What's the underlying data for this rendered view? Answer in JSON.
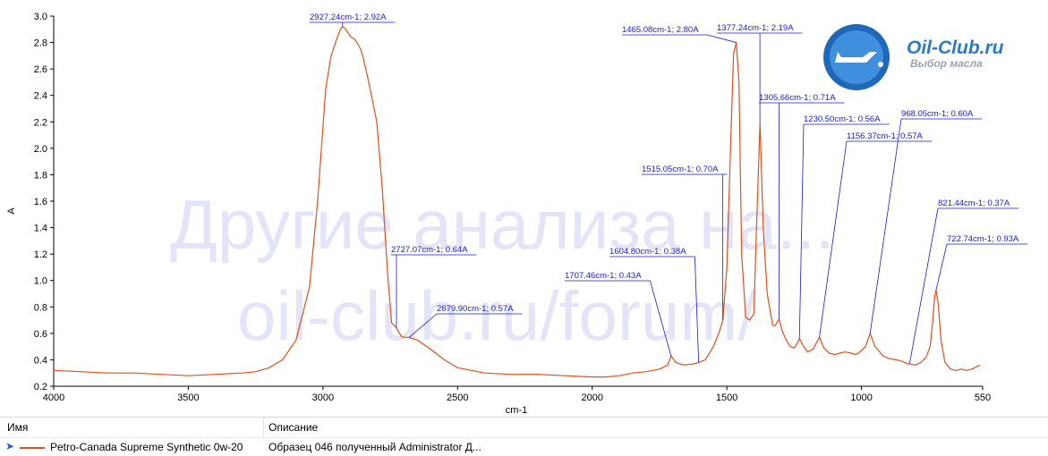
{
  "chart_data": {
    "type": "line",
    "xlabel": "cm-1",
    "ylabel": "A",
    "xlim": [
      4000,
      550
    ],
    "ylim": [
      0.2,
      3.0
    ],
    "x_reversed": true,
    "x_ticks": [
      4000,
      3500,
      3000,
      2500,
      2000,
      1500,
      1000,
      550
    ],
    "y_ticks": [
      0.2,
      0.4,
      0.6,
      0.8,
      1.0,
      1.2,
      1.4,
      1.6,
      1.8,
      2.0,
      2.2,
      2.4,
      2.6,
      2.8,
      3.0
    ],
    "y_tick_labels": [
      "0.2",
      "0.4",
      "0.6",
      "0.8",
      "1.0",
      "1.2",
      "1.4",
      "1.6",
      "1.8",
      "2.0",
      "2.2",
      "2.4",
      "2.6",
      "2.8",
      "3.0"
    ],
    "grid": false,
    "series": [
      {
        "name": "Petro-Canada Supreme Synthetic 0w-20",
        "color": "#e0501a",
        "x": [
          4000,
          3900,
          3800,
          3700,
          3600,
          3500,
          3400,
          3300,
          3250,
          3200,
          3150,
          3100,
          3050,
          3020,
          2990,
          2970,
          2950,
          2935,
          2927,
          2915,
          2900,
          2880,
          2860,
          2850,
          2830,
          2800,
          2780,
          2760,
          2745,
          2727,
          2710,
          2700,
          2680,
          2650,
          2600,
          2550,
          2500,
          2400,
          2300,
          2200,
          2100,
          2000,
          1950,
          1900,
          1850,
          1800,
          1750,
          1720,
          1707,
          1690,
          1660,
          1620,
          1605,
          1580,
          1550,
          1530,
          1515,
          1500,
          1485,
          1475,
          1465,
          1455,
          1445,
          1430,
          1415,
          1400,
          1390,
          1377,
          1365,
          1350,
          1330,
          1320,
          1306,
          1295,
          1280,
          1265,
          1250,
          1240,
          1230,
          1215,
          1200,
          1180,
          1170,
          1156,
          1140,
          1120,
          1100,
          1080,
          1060,
          1040,
          1020,
          1000,
          985,
          968,
          950,
          920,
          900,
          870,
          850,
          830,
          821,
          800,
          780,
          760,
          745,
          735,
          728,
          723,
          715,
          705,
          690,
          670,
          650,
          630,
          610,
          590,
          570,
          560
        ],
        "y": [
          0.32,
          0.31,
          0.3,
          0.3,
          0.29,
          0.28,
          0.29,
          0.3,
          0.31,
          0.34,
          0.4,
          0.55,
          0.95,
          1.6,
          2.45,
          2.7,
          2.82,
          2.9,
          2.92,
          2.9,
          2.85,
          2.82,
          2.75,
          2.68,
          2.5,
          2.2,
          1.7,
          1.05,
          0.68,
          0.64,
          0.58,
          0.57,
          0.57,
          0.55,
          0.48,
          0.4,
          0.34,
          0.3,
          0.29,
          0.29,
          0.28,
          0.27,
          0.27,
          0.28,
          0.3,
          0.31,
          0.33,
          0.36,
          0.43,
          0.38,
          0.36,
          0.37,
          0.38,
          0.4,
          0.5,
          0.6,
          0.7,
          1.1,
          2.1,
          2.72,
          2.8,
          2.5,
          1.2,
          0.72,
          0.7,
          0.75,
          1.4,
          2.19,
          1.4,
          0.9,
          0.66,
          0.66,
          0.71,
          0.62,
          0.55,
          0.5,
          0.49,
          0.52,
          0.56,
          0.5,
          0.46,
          0.48,
          0.52,
          0.57,
          0.49,
          0.45,
          0.44,
          0.45,
          0.46,
          0.45,
          0.44,
          0.47,
          0.5,
          0.6,
          0.5,
          0.43,
          0.41,
          0.4,
          0.39,
          0.37,
          0.37,
          0.36,
          0.38,
          0.42,
          0.5,
          0.7,
          0.88,
          0.93,
          0.82,
          0.55,
          0.38,
          0.33,
          0.32,
          0.33,
          0.32,
          0.33,
          0.35,
          0.36
        ]
      }
    ],
    "annotations": [
      {
        "x": 2927.24,
        "y": 2.92,
        "label": "2927.24cm-1; 2.92A"
      },
      {
        "x": 2727.07,
        "y": 0.64,
        "label": "2727.07cm-1; 0.64A"
      },
      {
        "x": 2679.9,
        "y": 0.57,
        "label": "2679.90cm-1; 0.57A"
      },
      {
        "x": 1707.46,
        "y": 0.43,
        "label": "1707.46cm-1; 0.43A"
      },
      {
        "x": 1604.8,
        "y": 0.38,
        "label": "1604.80cm-1; 0.38A"
      },
      {
        "x": 1515.05,
        "y": 0.7,
        "label": "1515.05cm-1; 0.70A"
      },
      {
        "x": 1465.08,
        "y": 2.8,
        "label": "1465.08cm-1; 2.80A"
      },
      {
        "x": 1377.24,
        "y": 2.19,
        "label": "1377.24cm-1; 2.19A"
      },
      {
        "x": 1305.66,
        "y": 0.71,
        "label": "1305.66cm-1; 0.71A"
      },
      {
        "x": 1230.5,
        "y": 0.56,
        "label": "1230.50cm-1; 0.56A"
      },
      {
        "x": 1156.37,
        "y": 0.57,
        "label": "1156.37cm-1; 0.57A"
      },
      {
        "x": 968.05,
        "y": 0.6,
        "label": "968.05cm-1; 0.60A"
      },
      {
        "x": 821.44,
        "y": 0.37,
        "label": "821.44cm-1; 0.37A"
      },
      {
        "x": 722.74,
        "y": 0.93,
        "label": "722.74cm-1; 0.93A"
      }
    ]
  },
  "watermark": {
    "line1": "Другие анализа на...",
    "line2": "oil-club.ru/forum/"
  },
  "logo": {
    "title": "Oil-Club.ru",
    "subtitle": "Выбор масла",
    "color": "#2b7bc7"
  },
  "legend": {
    "col_name": "Имя",
    "col_desc": "Описание",
    "row": {
      "name": "Petro-Canada Supreme Synthetic 0w-20",
      "desc": "Образец 046 полученный Administrator Д..."
    }
  }
}
